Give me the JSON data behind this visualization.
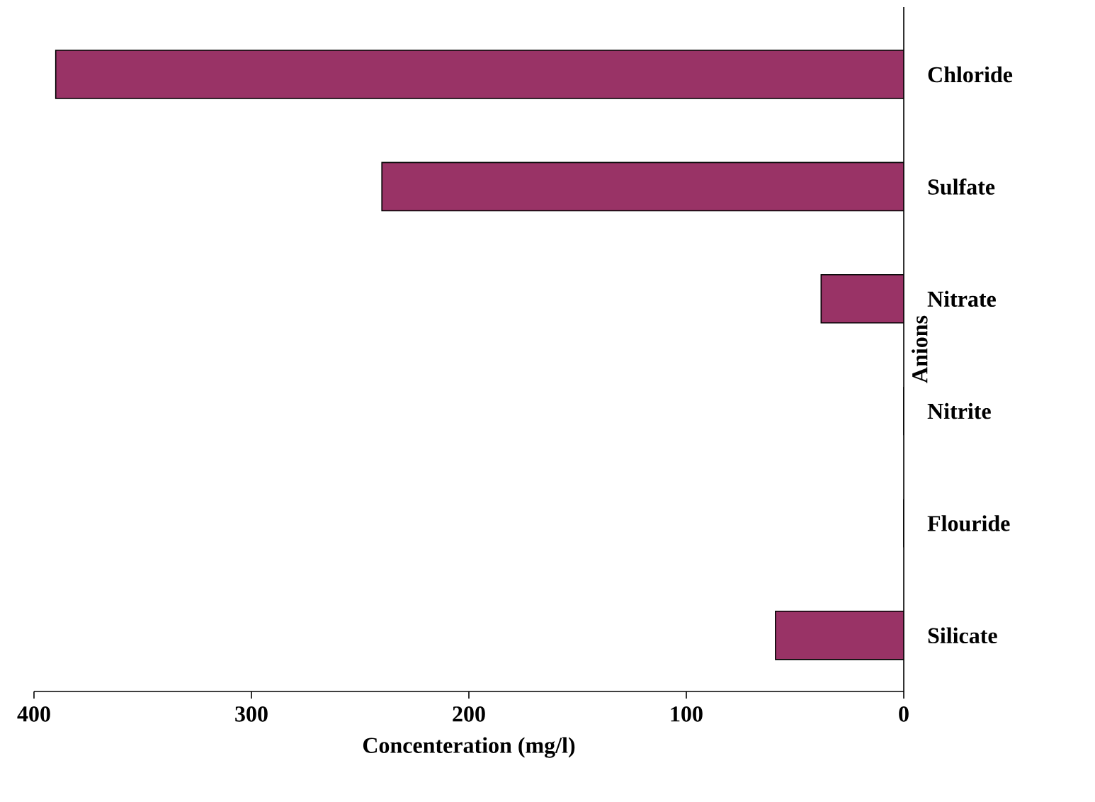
{
  "chart_data": {
    "type": "bar",
    "orientation": "horizontal",
    "xlabel": "Concenteration (mg/l)",
    "ylabel": "Anions",
    "categories": [
      "Chloride",
      "Sulfate",
      "Nitrate",
      "Nitrite",
      "Flouride",
      "Silicate"
    ],
    "values": [
      390,
      240,
      38,
      0,
      0,
      59
    ],
    "color": "#993366",
    "xlim": [
      400,
      0
    ],
    "xticks": [
      400,
      300,
      200,
      100,
      0
    ]
  }
}
